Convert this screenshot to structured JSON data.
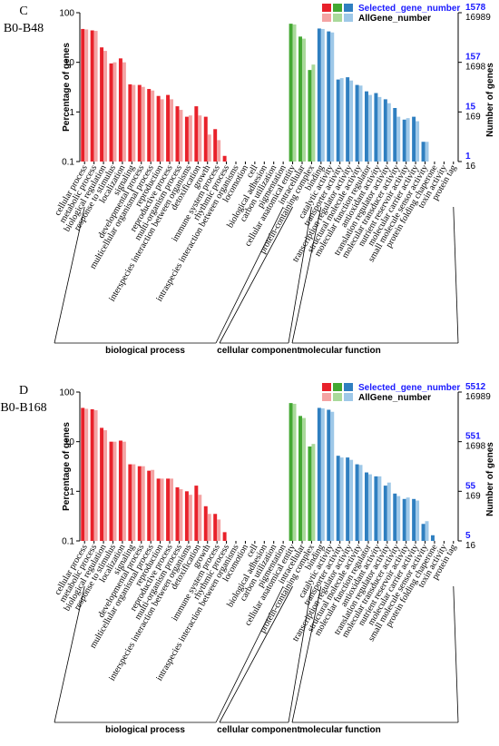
{
  "chart_data": [
    {
      "type": "bar",
      "panel_label": "C",
      "comparison": "B0-B48",
      "ylabel": "Percentage of genes",
      "ylabel_right": "Number of genes",
      "yscale": "log",
      "ylim": [
        0.1,
        100
      ],
      "yticks": [
        "100",
        "10",
        "1",
        "0.1"
      ],
      "right_ticks": [
        {
          "selected": "1578",
          "all": "16989"
        },
        {
          "selected": "157",
          "all": "1698"
        },
        {
          "selected": "15",
          "all": "169"
        },
        {
          "selected": "1",
          "all": "16"
        }
      ],
      "legend": {
        "selected": "Selected_gene_number",
        "all": "AllGene_number"
      },
      "groups": [
        {
          "name": "biological process",
          "start": 0,
          "end": 22,
          "color_selected": "#e8212a",
          "color_all": "#f4a3a3"
        },
        {
          "name": "cellular component",
          "start": 23,
          "end": 28,
          "color_selected": "#43a832",
          "color_all": "#a9d99a"
        },
        {
          "name": "molecular function",
          "start": 29,
          "end": 45,
          "color_selected": "#2f7fc0",
          "color_all": "#9ec8e8"
        }
      ],
      "categories": [
        "cellular process",
        "metabolic process",
        "biological regulation",
        "response to stimulus",
        "localization",
        "signaling",
        "developmental process",
        "multicellular organismal process",
        "reproduction",
        "reproductive process",
        "multi-organism process",
        "interspecies interaction between organisms",
        "detoxification",
        "growth",
        "immune system process",
        "rhythmic process",
        "intraspecies interaction between organisms",
        "locomotion",
        "cell",
        "biological adhesion",
        "carbon utilization",
        "pigmentation",
        "cellular anatomical entity",
        "intracellular",
        "protein-containing complex",
        "binding",
        "catalytic activity",
        "transporter activity",
        "transcription regulator activity",
        "structural molecule activity",
        "molecular function regulator",
        "antioxidant activity",
        "translation regulator activity",
        "molecular transducer activity",
        "nutrient reservoir activity",
        "molecular carrier activity",
        "small molecule sensor activity",
        "protein folding chaperone",
        "toxin activity",
        "protein tag",
        "cell",
        "biological adhesion",
        "carbon utilization",
        "pigmentation",
        "cellular anatomical entity",
        "intracellular"
      ],
      "series": [
        {
          "name": "Selected_gene_number",
          "values": [
            47,
            44,
            20,
            9.5,
            12,
            3.6,
            3.5,
            2.9,
            2.1,
            2.2,
            1.3,
            0.8,
            1.3,
            0.8,
            0.45,
            0.13,
            0,
            0,
            0,
            0,
            0,
            0,
            60,
            33,
            7,
            48,
            42,
            4.5,
            5,
            3.5,
            2.6,
            2.4,
            1.8,
            1.2,
            0.7,
            0.8,
            0.25,
            0,
            0,
            0,
            0,
            0,
            0,
            0,
            0,
            0
          ]
        },
        {
          "name": "AllGene_number",
          "values": [
            46,
            43,
            17,
            10,
            10,
            3.5,
            3.2,
            2.7,
            1.8,
            1.8,
            1.1,
            0.85,
            0.85,
            0.35,
            0.27,
            0,
            0,
            0,
            0,
            0,
            0,
            0,
            58,
            30,
            9,
            47,
            40,
            4.8,
            4.3,
            3.4,
            2.2,
            2.0,
            1.5,
            0.8,
            0.75,
            0.65,
            0.25,
            0,
            0,
            0,
            0,
            0,
            0,
            0,
            0,
            0
          ]
        }
      ]
    },
    {
      "type": "bar",
      "panel_label": "D",
      "comparison": "B0-B168",
      "ylabel": "Percentage of genes",
      "ylabel_right": "Number of genes",
      "yscale": "log",
      "ylim": [
        0.1,
        100
      ],
      "yticks": [
        "100",
        "10",
        "1",
        "0.1"
      ],
      "right_ticks": [
        {
          "selected": "5512",
          "all": "16989"
        },
        {
          "selected": "551",
          "all": "1698"
        },
        {
          "selected": "55",
          "all": "169"
        },
        {
          "selected": "5",
          "all": "16"
        }
      ],
      "legend": {
        "selected": "Selected_gene_number",
        "all": "AllGene_number"
      },
      "groups": [
        {
          "name": "biological process",
          "start": 0,
          "end": 22,
          "color_selected": "#e8212a",
          "color_all": "#f4a3a3"
        },
        {
          "name": "cellular component",
          "start": 23,
          "end": 28,
          "color_selected": "#43a832",
          "color_all": "#a9d99a"
        },
        {
          "name": "molecular function",
          "start": 29,
          "end": 45,
          "color_selected": "#2f7fc0",
          "color_all": "#9ec8e8"
        }
      ],
      "categories": [
        "cellular process",
        "metabolic process",
        "biological regulation",
        "response to stimulus",
        "localization",
        "signaling",
        "developmental process",
        "multicellular organismal process",
        "reproduction",
        "reproductive process",
        "multi-organism process",
        "interspecies interaction between organisms",
        "detoxification",
        "growth",
        "immune system process",
        "rhythmic process",
        "intraspecies interaction between organisms",
        "locomotion",
        "cell",
        "biological adhesion",
        "carbon utilization",
        "pigmentation",
        "cellular anatomical entity",
        "intracellular",
        "protein-containing complex",
        "binding",
        "catalytic activity",
        "transporter activity",
        "transcription regulator activity",
        "structural molecule activity",
        "molecular function regulator",
        "antioxidant activity",
        "translation regulator activity",
        "molecular transducer activity",
        "nutrient reservoir activity",
        "molecular carrier activity",
        "small molecule sensor activity",
        "protein folding chaperone",
        "toxin activity",
        "protein tag",
        "cell",
        "biological adhesion",
        "carbon utilization",
        "pigmentation",
        "cellular anatomical entity",
        "intracellular"
      ],
      "series": [
        {
          "name": "Selected_gene_number",
          "values": [
            48,
            45,
            19,
            10,
            10.5,
            3.5,
            3.2,
            2.6,
            1.8,
            1.8,
            1.2,
            1.0,
            1.3,
            0.5,
            0.35,
            0.15,
            0,
            0,
            0,
            0,
            0,
            0,
            60,
            33,
            8,
            48,
            44,
            5.2,
            4.8,
            3.5,
            2.4,
            2.0,
            1.3,
            0.9,
            0.7,
            0.7,
            0.22,
            0.13,
            0,
            0,
            0,
            0,
            0,
            0,
            0,
            0
          ]
        },
        {
          "name": "AllGene_number",
          "values": [
            46,
            43,
            17,
            10,
            10,
            3.5,
            3.2,
            2.7,
            1.8,
            1.8,
            1.1,
            0.85,
            0.85,
            0.35,
            0.27,
            0,
            0,
            0,
            0,
            0,
            0,
            0,
            58,
            30,
            9,
            47,
            40,
            4.8,
            4.3,
            3.4,
            2.2,
            2.0,
            1.5,
            0.8,
            0.75,
            0.65,
            0.25,
            0,
            0,
            0,
            0,
            0,
            0,
            0,
            0,
            0
          ]
        }
      ]
    }
  ]
}
